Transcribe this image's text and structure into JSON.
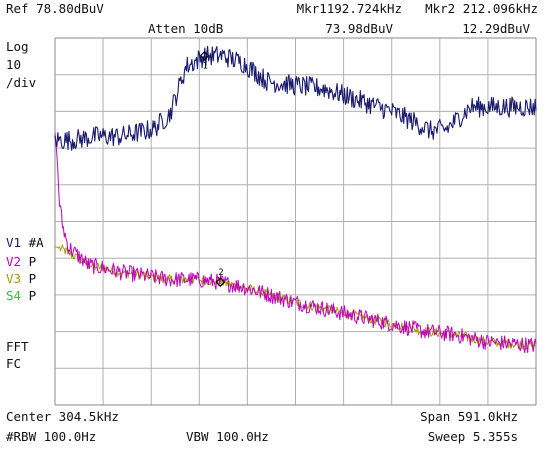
{
  "header": {
    "ref": "Ref 78.80dBuV",
    "atten": "Atten 10dB",
    "mkr1_label": "Mkr1192.724kHz",
    "mkr1_value": "73.98dBuV",
    "mkr2_label": "Mkr2 212.096kHz",
    "mkr2_value": "12.29dBuV"
  },
  "scale": {
    "log": "Log",
    "per_div_value": "10",
    "per_div_unit": "/div"
  },
  "traces_legend": [
    {
      "id": "V1",
      "mode": "#A",
      "color": "#1a1a6e"
    },
    {
      "id": "V2",
      "mode": "P",
      "color": "#c000c0"
    },
    {
      "id": "V3",
      "mode": "P",
      "color": "#a0a000"
    },
    {
      "id": "S4",
      "mode": "P",
      "color": "#30c030"
    }
  ],
  "side": {
    "fft": "FFT",
    "fc": "FC"
  },
  "footer": {
    "center": "Center 304.5kHz",
    "span": "Span 591.0kHz",
    "rbw": "#RBW 100.0Hz",
    "vbw": "VBW 100.0Hz",
    "sweep": "Sweep 5.355s"
  },
  "chart_data": {
    "type": "line",
    "x_unit": "kHz",
    "y_unit": "dBuV",
    "xlim": [
      9.0,
      600.0
    ],
    "ylim": [
      -21.2,
      78.8
    ],
    "grid": true,
    "markers": [
      {
        "label": "1",
        "x": 192.724,
        "y": 73.98
      },
      {
        "label": "2",
        "x": 212.096,
        "y": 12.29
      }
    ],
    "series": [
      {
        "name": "V1",
        "color": "#1a1a6e",
        "x": [
          9,
          30,
          60,
          90,
          110,
          130,
          150,
          170,
          192.7,
          215,
          240,
          270,
          300,
          340,
          380,
          420,
          450,
          470,
          490,
          520,
          560,
          600
        ],
        "y": [
          51,
          51,
          52,
          52,
          53,
          54,
          58,
          71,
          73.9,
          74,
          72,
          67,
          66,
          65,
          62,
          59,
          56,
          53.5,
          54,
          60,
          60,
          60
        ]
      },
      {
        "name": "V2",
        "color": "#c000c0",
        "x": [
          9,
          12,
          14,
          18,
          25,
          35,
          50,
          70,
          90,
          120,
          150,
          180,
          212.1,
          240,
          270,
          300,
          340,
          380,
          420,
          460,
          500,
          540,
          600
        ],
        "y": [
          53,
          45,
          35,
          28,
          22,
          20,
          17,
          16,
          15,
          14,
          13,
          13,
          12.3,
          11,
          9,
          7,
          5,
          3,
          1,
          -1,
          -2,
          -4,
          -5
        ]
      },
      {
        "name": "V3",
        "color": "#a0a000",
        "x": [
          9,
          20,
          35,
          50,
          70,
          90,
          120,
          150,
          180,
          212.1,
          240,
          270,
          300,
          340,
          380,
          420,
          460,
          500,
          540,
          600
        ],
        "y": [
          22,
          21,
          19,
          17,
          16,
          15,
          14,
          13,
          13,
          12.3,
          11,
          9,
          7,
          5,
          3,
          1,
          -1,
          -2,
          -4,
          -5
        ]
      }
    ]
  }
}
